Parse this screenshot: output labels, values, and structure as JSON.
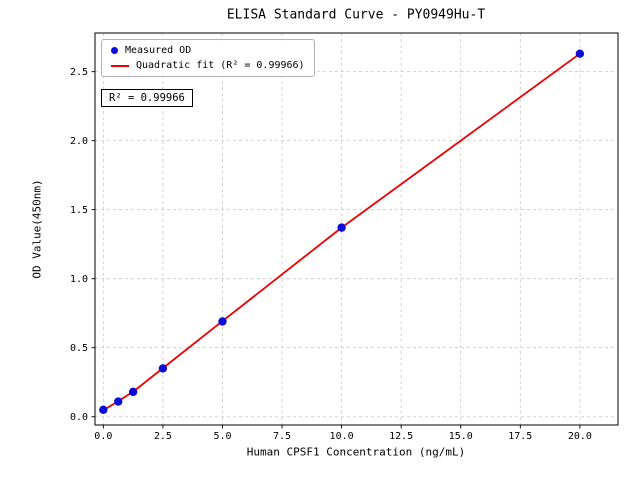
{
  "chart_data": {
    "type": "scatter",
    "title": "ELISA Standard Curve - PY0949Hu-T",
    "xlabel": "Human CPSF1 Concentration (ng/mL)",
    "ylabel": "OD Value(450nm)",
    "annotation": "R² = 0.99966",
    "r_squared": 0.99966,
    "grid": true,
    "legend_position": "upper left",
    "xlim": [
      -0.35,
      21.6
    ],
    "ylim": [
      -0.06,
      2.78
    ],
    "x_ticks": [
      0.0,
      2.5,
      5.0,
      7.5,
      10.0,
      12.5,
      15.0,
      17.5,
      20.0
    ],
    "x_tick_labels": [
      "0.0",
      "2.5",
      "5.0",
      "7.5",
      "10.0",
      "12.5",
      "15.0",
      "17.5",
      "20.0"
    ],
    "y_ticks": [
      0.0,
      0.5,
      1.0,
      1.5,
      2.0,
      2.5
    ],
    "y_tick_labels": [
      "0.0",
      "0.5",
      "1.0",
      "1.5",
      "2.0",
      "2.5"
    ],
    "colors": {
      "points": "#0b0bd6",
      "line": "#ee0000",
      "grid": "#c9c9c9",
      "axis": "#000000"
    },
    "series": [
      {
        "name": "Measured OD",
        "type": "scatter",
        "x": [
          0,
          0.625,
          1.25,
          2.5,
          5,
          10,
          20
        ],
        "y": [
          0.05,
          0.11,
          0.18,
          0.35,
          0.69,
          1.37,
          2.63
        ]
      },
      {
        "name": "Quadratic fit (R² = 0.99966)",
        "type": "line",
        "x": [
          0,
          0.625,
          1.25,
          2.5,
          5,
          10,
          20
        ],
        "y": [
          0.046,
          0.113,
          0.181,
          0.352,
          0.693,
          1.37,
          2.63
        ]
      }
    ]
  }
}
